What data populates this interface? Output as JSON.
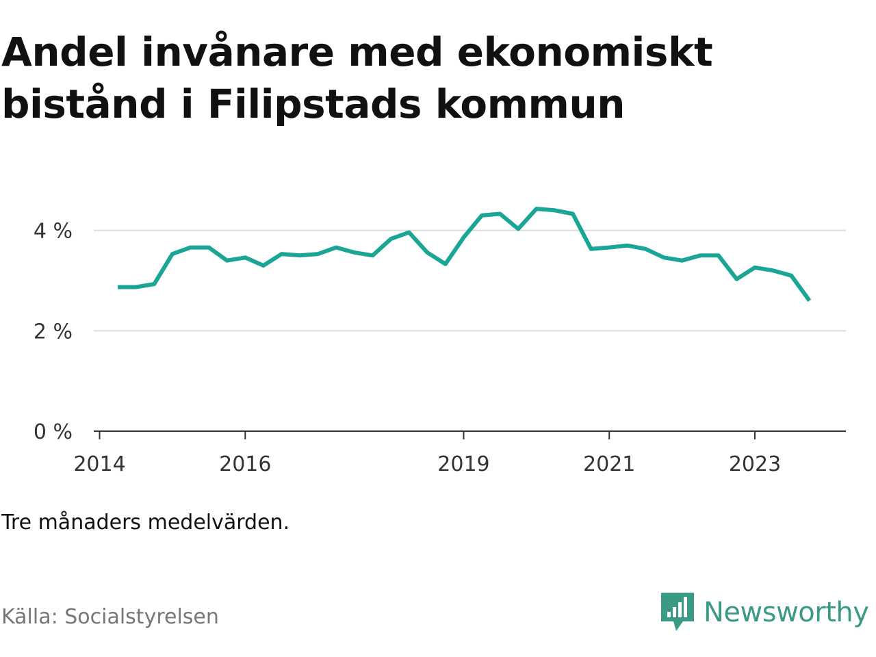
{
  "title": "Andel invånare med ekonomiskt bistånd i Filipstads kommun",
  "subtitle": "Tre månaders medelvärden.",
  "source": "Källa: Socialstyrelsen",
  "brand": {
    "name": "Newsworthy",
    "icon": "newsworthy-logo-icon",
    "color": "#3a9a86"
  },
  "colors": {
    "line": "#1aa595",
    "grid": "#dddddd",
    "axis": "#333333"
  },
  "chart_data": {
    "type": "line",
    "title": "Andel invånare med ekonomiskt bistånd i Filipstads kommun",
    "xlabel": "",
    "ylabel": "",
    "ylim": [
      0,
      4.5
    ],
    "xlim": [
      2013.92,
      2024.25
    ],
    "y_ticks": [
      {
        "value": 0,
        "label": "0 %"
      },
      {
        "value": 2,
        "label": "2 %"
      },
      {
        "value": 4,
        "label": "4 %"
      }
    ],
    "x_ticks": [
      {
        "value": 2014,
        "label": "2014"
      },
      {
        "value": 2016,
        "label": "2016"
      },
      {
        "value": 2019,
        "label": "2019"
      },
      {
        "value": 2021,
        "label": "2021"
      },
      {
        "value": 2023,
        "label": "2023"
      }
    ],
    "grid": true,
    "legend": "none",
    "series": [
      {
        "name": "",
        "x": [
          2014.25,
          2014.5,
          2014.75,
          2015.0,
          2015.25,
          2015.5,
          2015.75,
          2016.0,
          2016.25,
          2016.5,
          2016.75,
          2017.0,
          2017.25,
          2017.5,
          2017.75,
          2018.0,
          2018.25,
          2018.5,
          2018.75,
          2019.0,
          2019.25,
          2019.5,
          2019.75,
          2020.0,
          2020.25,
          2020.5,
          2020.75,
          2021.0,
          2021.25,
          2021.5,
          2021.75,
          2022.0,
          2022.25,
          2022.5,
          2022.75,
          2023.0,
          2023.25,
          2023.5,
          2023.75
        ],
        "values": [
          2.87,
          2.87,
          2.93,
          3.53,
          3.66,
          3.66,
          3.4,
          3.46,
          3.3,
          3.53,
          3.5,
          3.53,
          3.66,
          3.56,
          3.5,
          3.83,
          3.96,
          3.56,
          3.33,
          3.86,
          4.3,
          4.33,
          4.03,
          4.43,
          4.4,
          4.33,
          3.63,
          3.66,
          3.7,
          3.63,
          3.46,
          3.4,
          3.5,
          3.5,
          3.03,
          3.26,
          3.2,
          3.1,
          2.6
        ]
      }
    ]
  }
}
